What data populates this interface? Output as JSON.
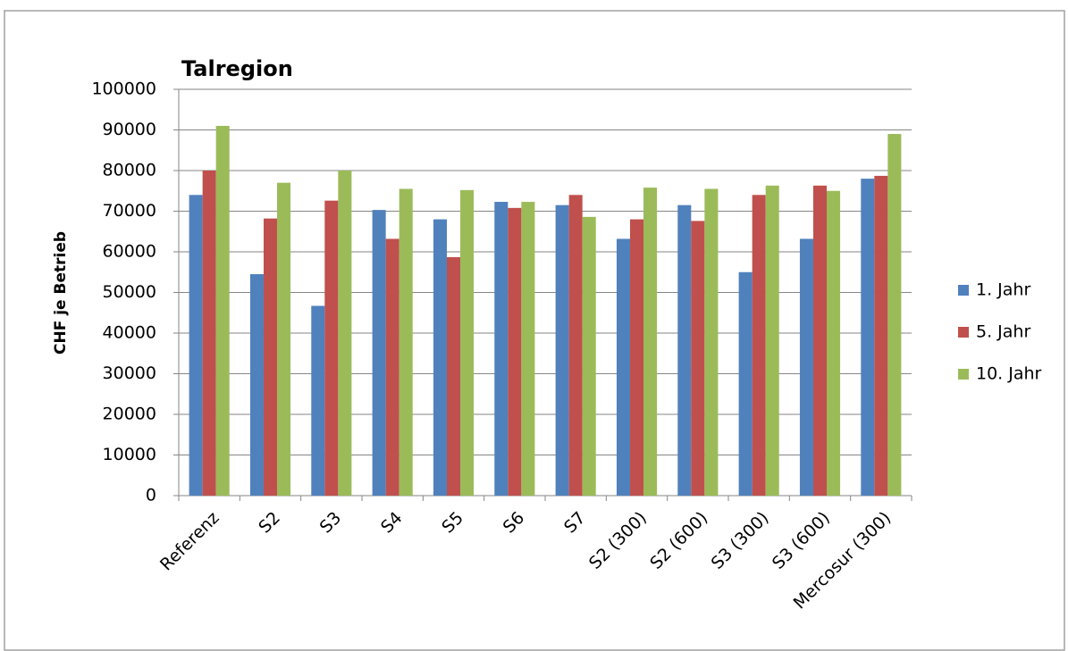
{
  "chart_data": {
    "type": "bar",
    "title": "Talregion",
    "y_label": "CHF je Betrieb",
    "categories": [
      "Referenz",
      "S2",
      "S3",
      "S4",
      "S5",
      "S6",
      "S7",
      "S2 (300)",
      "S2 (600)",
      "S3 (300)",
      "S3 (600)",
      "Mercosur (300)"
    ],
    "series": [
      {
        "name": "1. Jahr",
        "color": "#4f81bd",
        "values": [
          74000,
          54500,
          46700,
          70300,
          68000,
          72300,
          71500,
          63200,
          71500,
          55000,
          63200,
          78000
        ]
      },
      {
        "name": "5. Jahr",
        "color": "#c0504d",
        "values": [
          80000,
          68200,
          72600,
          63200,
          58700,
          70800,
          74000,
          68000,
          67600,
          74000,
          76300,
          78700
        ]
      },
      {
        "name": "10. Jahr",
        "color": "#9bbb59",
        "values": [
          91000,
          77000,
          80000,
          75500,
          75200,
          72300,
          68600,
          75800,
          75500,
          76300,
          75000,
          89000
        ]
      }
    ],
    "ylim": [
      0,
      100000
    ],
    "yticks": [
      0,
      10000,
      20000,
      30000,
      40000,
      50000,
      60000,
      70000,
      80000,
      90000,
      100000
    ],
    "grid": true,
    "legend": "right"
  }
}
